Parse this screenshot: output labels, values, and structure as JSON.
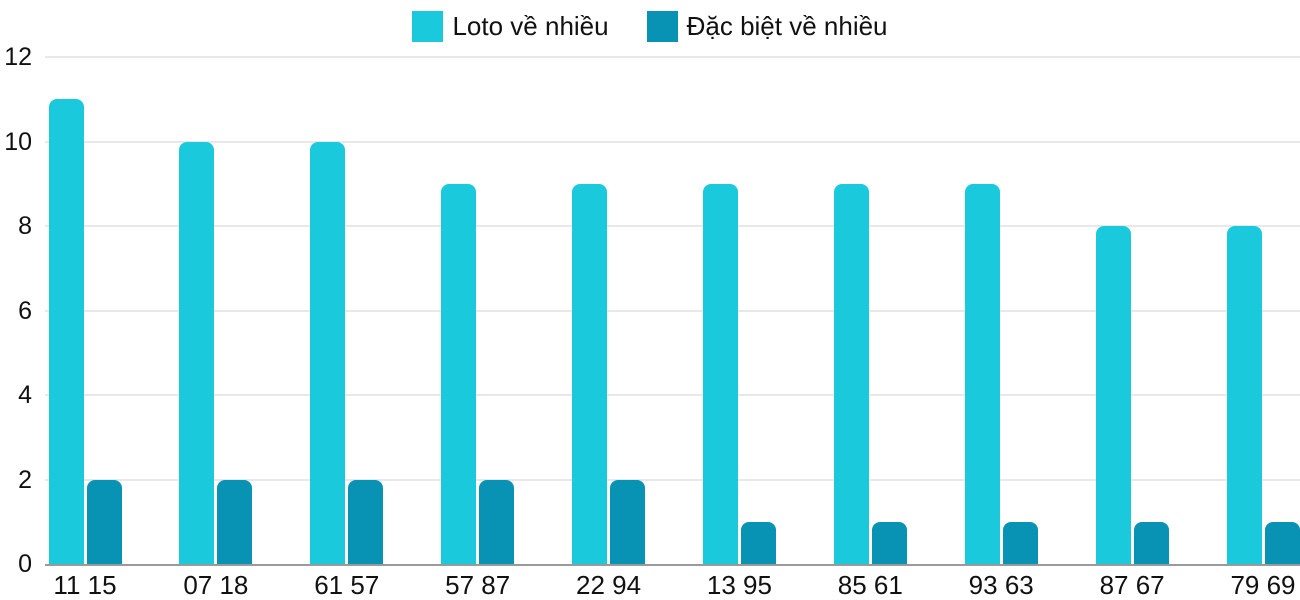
{
  "chart_data": {
    "type": "bar",
    "title": "",
    "xlabel": "",
    "ylabel": "",
    "categories": [
      "11 15",
      "07 18",
      "61 57",
      "57 87",
      "22 94",
      "13 95",
      "85 61",
      "93 63",
      "87 67",
      "79 69"
    ],
    "series": [
      {
        "name": "Loto về nhiều",
        "color": "#1BC9DC",
        "values": [
          11,
          10,
          10,
          9,
          9,
          9,
          9,
          9,
          8,
          8
        ]
      },
      {
        "name": "Đặc biệt về nhiều",
        "color": "#0893B5",
        "values": [
          2,
          2,
          2,
          2,
          2,
          1,
          1,
          1,
          1,
          1
        ]
      }
    ],
    "ylim": [
      0,
      12
    ],
    "yticks": [
      0,
      2,
      4,
      6,
      8,
      10,
      12
    ],
    "grid": true,
    "legend_position": "top"
  }
}
